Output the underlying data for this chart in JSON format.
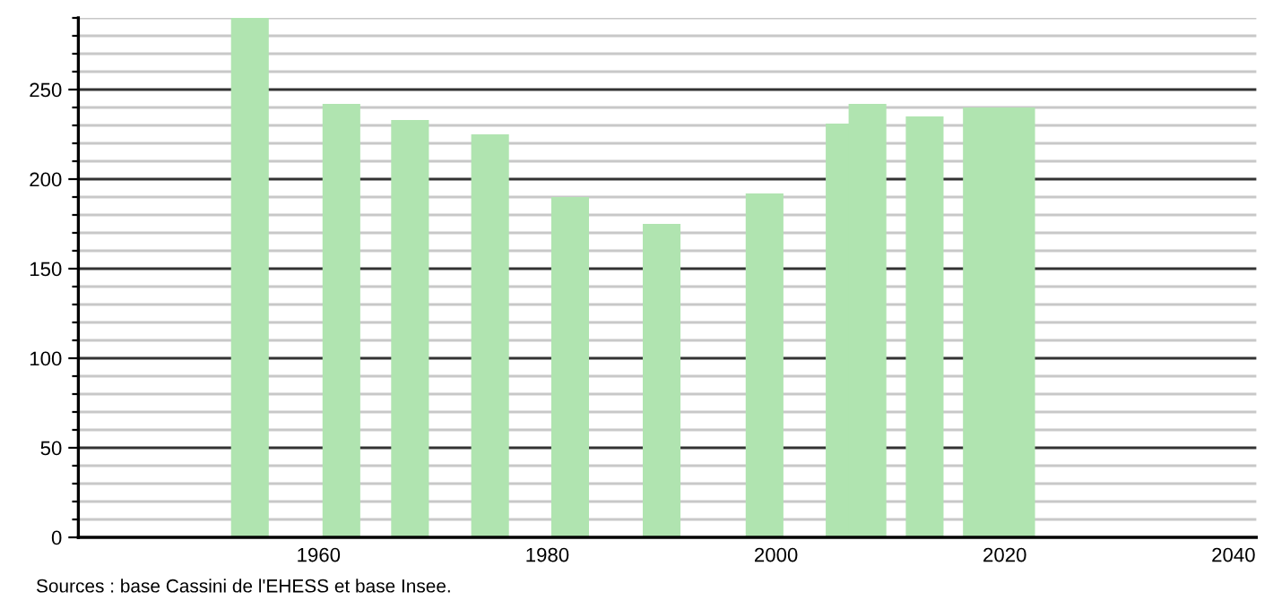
{
  "chart_data": {
    "type": "bar",
    "x": [
      1954,
      1962,
      1968,
      1975,
      1982,
      1990,
      1999,
      2006,
      2008,
      2013,
      2018,
      2021
    ],
    "values": [
      290,
      242,
      233,
      225,
      190,
      175,
      192,
      231,
      242,
      235,
      240,
      240
    ],
    "color": "#b0e4b0",
    "xlim": [
      1939,
      2042
    ],
    "xticks": [
      1960,
      1980,
      2000,
      2020,
      2040
    ],
    "ylim": [
      0,
      290
    ],
    "yticks": [
      0,
      {
        "value": 10,
        "label": null
      },
      {
        "value": 20,
        "label": null
      },
      {
        "value": 30,
        "label": null
      },
      {
        "value": 40,
        "label": null
      },
      50,
      {
        "value": 60,
        "label": null
      },
      {
        "value": 70,
        "label": null
      },
      {
        "value": 80,
        "label": null
      },
      {
        "value": 90,
        "label": null
      },
      100,
      {
        "value": 110,
        "label": null
      },
      {
        "value": 120,
        "label": null
      },
      {
        "value": 130,
        "label": null
      },
      {
        "value": 140,
        "label": null
      },
      150,
      {
        "value": 160,
        "label": null
      },
      {
        "value": 170,
        "label": null
      },
      {
        "value": 180,
        "label": null
      },
      {
        "value": 190,
        "label": null
      },
      200,
      {
        "value": 210,
        "label": null
      },
      {
        "value": 220,
        "label": null
      },
      {
        "value": 230,
        "label": null
      },
      {
        "value": 240,
        "label": null
      },
      250,
      {
        "value": 260,
        "label": null
      },
      {
        "value": 270,
        "label": null
      },
      {
        "value": 280,
        "label": null
      },
      {
        "value": 290,
        "label": null
      }
    ],
    "grid": "y",
    "annotations": [
      "Sources : base Cassini de l'EHESS et base Insee."
    ]
  }
}
